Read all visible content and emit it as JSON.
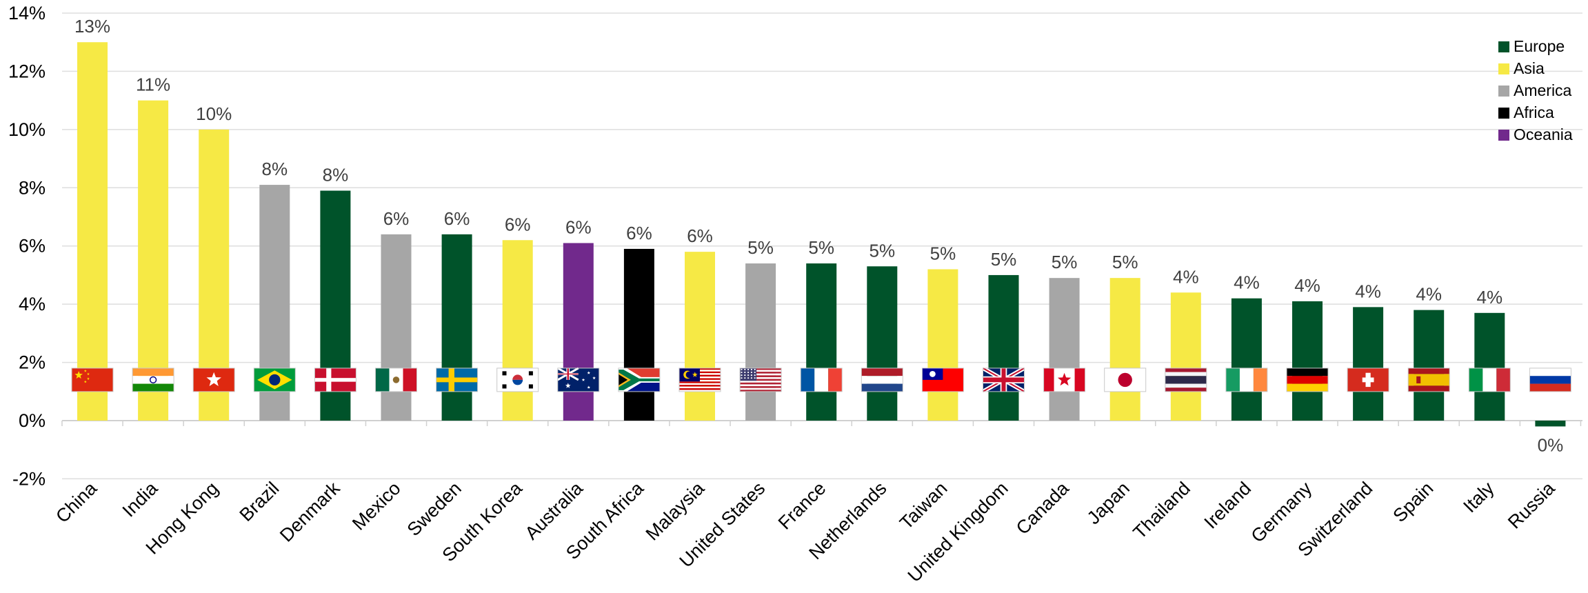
{
  "chart_data": {
    "type": "bar",
    "title": "",
    "xlabel": "",
    "ylabel": "",
    "ylim": [
      -2,
      14
    ],
    "yticks": [
      -2,
      0,
      2,
      4,
      6,
      8,
      10,
      12,
      14
    ],
    "ytick_labels": [
      "-2%",
      "0%",
      "2%",
      "4%",
      "6%",
      "8%",
      "10%",
      "12%",
      "14%"
    ],
    "grid": true,
    "legend_position": "top-right",
    "colors": {
      "Europe": "#00532a",
      "Asia": "#f6e945",
      "America": "#a6a6a6",
      "Africa": "#000000",
      "Oceania": "#71298c"
    },
    "legend": [
      "Europe",
      "Asia",
      "America",
      "Africa",
      "Oceania"
    ],
    "categories": [
      "China",
      "India",
      "Hong Kong",
      "Brazil",
      "Denmark",
      "Mexico",
      "Sweden",
      "South Korea",
      "Australia",
      "South Africa",
      "Malaysia",
      "United States",
      "France",
      "Netherlands",
      "Taiwan",
      "United Kingdom",
      "Canada",
      "Japan",
      "Thailand",
      "Ireland",
      "Germany",
      "Switzerland",
      "Spain",
      "Italy",
      "Russia"
    ],
    "values": [
      13.0,
      11.0,
      10.0,
      8.1,
      7.9,
      6.4,
      6.4,
      6.2,
      6.1,
      5.9,
      5.8,
      5.4,
      5.4,
      5.3,
      5.2,
      5.0,
      4.9,
      4.9,
      4.4,
      4.2,
      4.1,
      3.9,
      3.8,
      3.7,
      -0.2
    ],
    "labels": [
      "13%",
      "11%",
      "10%",
      "8%",
      "8%",
      "6%",
      "6%",
      "6%",
      "6%",
      "6%",
      "6%",
      "5%",
      "5%",
      "5%",
      "5%",
      "5%",
      "5%",
      "5%",
      "4%",
      "4%",
      "4%",
      "4%",
      "4%",
      "4%",
      "0%"
    ],
    "regions": [
      "Asia",
      "Asia",
      "Asia",
      "America",
      "Europe",
      "America",
      "Europe",
      "Asia",
      "Oceania",
      "Africa",
      "Asia",
      "America",
      "Europe",
      "Europe",
      "Asia",
      "Europe",
      "America",
      "Asia",
      "Asia",
      "Europe",
      "Europe",
      "Europe",
      "Europe",
      "Europe",
      "Europe"
    ],
    "flags": [
      "china-flag-icon",
      "india-flag-icon",
      "hong-kong-flag-icon",
      "brazil-flag-icon",
      "denmark-flag-icon",
      "mexico-flag-icon",
      "sweden-flag-icon",
      "south-korea-flag-icon",
      "australia-flag-icon",
      "south-africa-flag-icon",
      "malaysia-flag-icon",
      "united-states-flag-icon",
      "france-flag-icon",
      "netherlands-flag-icon",
      "taiwan-flag-icon",
      "united-kingdom-flag-icon",
      "canada-flag-icon",
      "japan-flag-icon",
      "thailand-flag-icon",
      "ireland-flag-icon",
      "germany-flag-icon",
      "switzerland-flag-icon",
      "spain-flag-icon",
      "italy-flag-icon",
      "russia-flag-icon"
    ]
  }
}
